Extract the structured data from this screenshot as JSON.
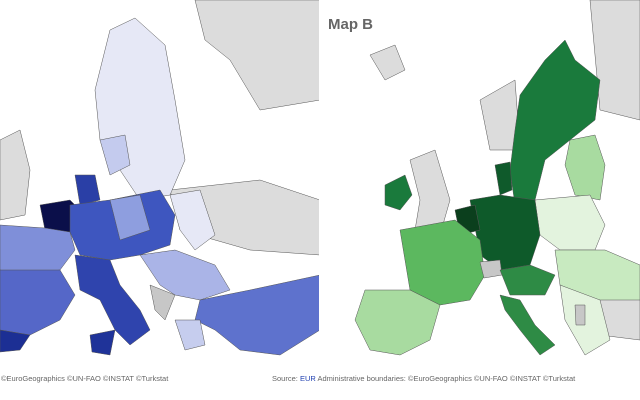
{
  "map_title": "Map B",
  "footer": {
    "left": {
      "attribution": "©EuroGeographics ©UN-FAO ©INSTAT ©Turkstat"
    },
    "right": {
      "source_label": "Source:",
      "source_link": "EUR",
      "attribution": "Administrative boundaries: ©EuroGeographics ©UN-FAO ©INSTAT ©Turkstat"
    }
  }
}
